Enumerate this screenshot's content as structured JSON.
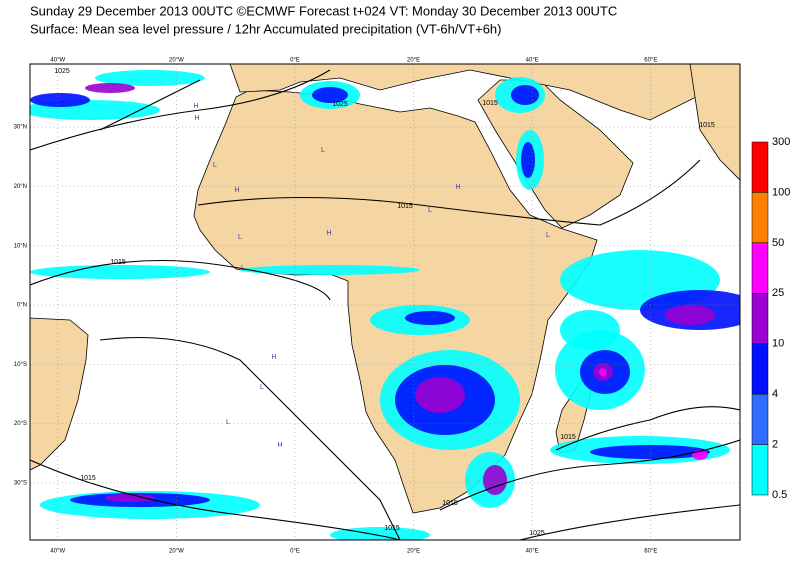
{
  "header": {
    "line1": "Sunday 29 December 2013 00UTC ©ECMWF Forecast t+024 VT: Monday 30 December 2013 00UTC",
    "line2": "Surface: Mean sea level pressure / 12hr Accumulated precipitation (VT-6h/VT+6h)"
  },
  "map": {
    "lon_labels": [
      "40°W",
      "20°W",
      "0°E",
      "20°E",
      "40°E",
      "60°E"
    ],
    "lat_labels": [
      "30°N",
      "20°N",
      "10°N",
      "0°N",
      "10°S",
      "20°S",
      "30°S"
    ],
    "isobar_labels": [
      "1025",
      "1025",
      "1015",
      "1015",
      "1015",
      "1015",
      "1015",
      "1015",
      "1015",
      "1025",
      "1015"
    ],
    "pressure_centres": [
      "H",
      "H",
      "L",
      "H",
      "L",
      "H",
      "L",
      "L",
      "H",
      "L",
      "L",
      "H",
      "H",
      "L",
      "L",
      "H"
    ],
    "land_color": "#f5d6a2",
    "ocean_color": "#ffffff"
  },
  "colorbar": {
    "labels": [
      "300",
      "100",
      "50",
      "25",
      "10",
      "4",
      "2",
      "0.5"
    ],
    "colors": [
      "#ff0000",
      "#ff8000",
      "#ff00ff",
      "#9a00d0",
      "#0010ff",
      "#2f6cff",
      "#00ffff"
    ]
  }
}
